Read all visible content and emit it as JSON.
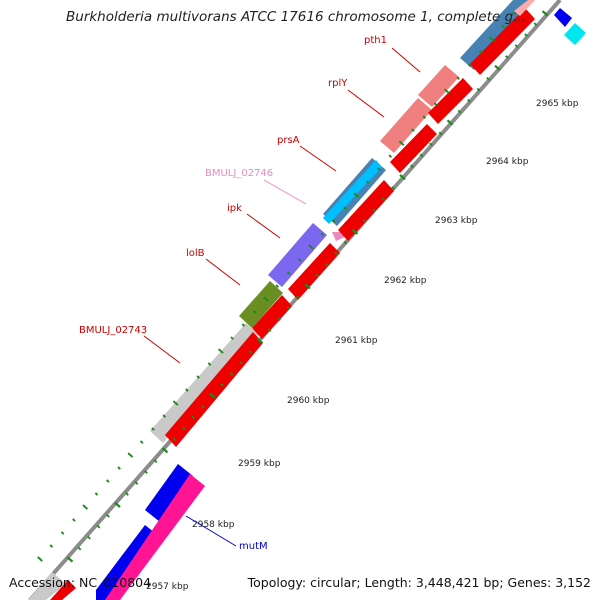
{
  "title": "Burkholderia multivorans ATCC 17616 chromosome 1, complete g...",
  "footer": {
    "accession": "Accession: NC_010804",
    "topology": "Topology: circular; Length: 3,448,421 bp; Genes: 3,152"
  },
  "colors": {
    "backbone": "#8c8c8c",
    "tick": "#1a8a1a",
    "ruler_label": "#222222",
    "gene_label": "#cc0000",
    "pseudo_label": "#e68cbf",
    "mutM_label": "#0000cc"
  },
  "ruler": [
    "2957 kbp",
    "2958 kbp",
    "2959 kbp",
    "2960 kbp",
    "2961 kbp",
    "2962 kbp",
    "2963 kbp",
    "2964 kbp",
    "2965 kbp"
  ],
  "gene_labels": [
    {
      "id": "pth1",
      "text": "pth1",
      "color": "#cc0000"
    },
    {
      "id": "rplY",
      "text": "rplY",
      "color": "#cc0000"
    },
    {
      "id": "prsA",
      "text": "prsA",
      "color": "#cc0000"
    },
    {
      "id": "bmulj02746",
      "text": "BMULJ_02746",
      "color": "#e68cbf"
    },
    {
      "id": "ipk",
      "text": "ipk",
      "color": "#cc0000"
    },
    {
      "id": "lolB",
      "text": "lolB",
      "color": "#cc0000"
    },
    {
      "id": "bmulj02743",
      "text": "BMULJ_02743",
      "color": "#cc0000"
    },
    {
      "id": "mutM",
      "text": "mutM",
      "color": "#0000cc"
    }
  ]
}
